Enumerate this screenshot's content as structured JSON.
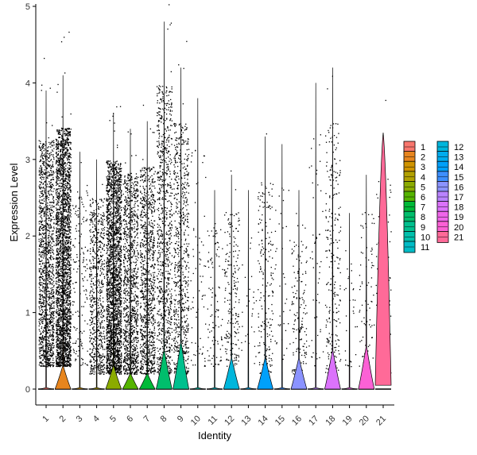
{
  "chart_data": {
    "type": "violin",
    "title": "",
    "xlabel": "Identity",
    "ylabel": "Expression Level",
    "ylim": [
      0,
      5
    ],
    "yticks": [
      "0",
      "1",
      "2",
      "3",
      "4",
      "5"
    ],
    "categories": [
      "1",
      "2",
      "3",
      "4",
      "5",
      "6",
      "7",
      "8",
      "9",
      "10",
      "11",
      "12",
      "13",
      "14",
      "15",
      "16",
      "17",
      "18",
      "19",
      "20",
      "21"
    ],
    "legend_position": "right",
    "grid": false,
    "series": [
      {
        "name": "1",
        "color": "#F8766D",
        "max": 3.9,
        "fraction_nonzero": 0.02,
        "violin_top": 0.0,
        "point_count": 1400,
        "point_range": [
          0.3,
          3.9
        ]
      },
      {
        "name": "2",
        "color": "#E7851E",
        "max": 4.1,
        "fraction_nonzero": 0.45,
        "violin_top": 0.3,
        "point_count": 2600,
        "point_range": [
          0.3,
          4.1
        ]
      },
      {
        "name": "3",
        "color": "#D09400",
        "max": 3.1,
        "fraction_nonzero": 0.02,
        "violin_top": 0.0,
        "point_count": 150,
        "point_range": [
          0.3,
          3.1
        ]
      },
      {
        "name": "4",
        "color": "#B2A100",
        "max": 3.0,
        "fraction_nonzero": 0.02,
        "violin_top": 0.0,
        "point_count": 700,
        "point_range": [
          0.2,
          3.0
        ]
      },
      {
        "name": "5",
        "color": "#8BAB00",
        "max": 3.6,
        "fraction_nonzero": 0.1,
        "violin_top": 0.3,
        "point_count": 2400,
        "point_range": [
          0.2,
          3.6
        ]
      },
      {
        "name": "6",
        "color": "#55B400",
        "max": 3.4,
        "fraction_nonzero": 0.05,
        "violin_top": 0.2,
        "point_count": 1100,
        "point_range": [
          0.2,
          3.4
        ]
      },
      {
        "name": "7",
        "color": "#00BA38",
        "max": 3.5,
        "fraction_nonzero": 0.05,
        "violin_top": 0.2,
        "point_count": 1000,
        "point_range": [
          0.2,
          3.5
        ]
      },
      {
        "name": "8",
        "color": "#00BE6C",
        "max": 4.8,
        "fraction_nonzero": 0.12,
        "violin_top": 0.5,
        "point_count": 900,
        "point_range": [
          0.2,
          4.8
        ]
      },
      {
        "name": "9",
        "color": "#00C08E",
        "max": 4.2,
        "fraction_nonzero": 0.12,
        "violin_top": 0.6,
        "point_count": 700,
        "point_range": [
          0.2,
          4.2
        ]
      },
      {
        "name": "10",
        "color": "#00C0AC",
        "max": 3.8,
        "fraction_nonzero": 0.01,
        "violin_top": 0.0,
        "point_count": 70,
        "point_range": [
          0.3,
          3.8
        ]
      },
      {
        "name": "11",
        "color": "#00BCC6",
        "max": 2.6,
        "fraction_nonzero": 0.01,
        "violin_top": 0.0,
        "point_count": 100,
        "point_range": [
          0.3,
          2.6
        ]
      },
      {
        "name": "12",
        "color": "#00B6DC",
        "max": 2.8,
        "fraction_nonzero": 0.08,
        "violin_top": 0.4,
        "point_count": 200,
        "point_range": [
          0.3,
          2.8
        ]
      },
      {
        "name": "13",
        "color": "#00ACEE",
        "max": 2.6,
        "fraction_nonzero": 0.01,
        "violin_top": 0.0,
        "point_count": 30,
        "point_range": [
          0.3,
          2.6
        ]
      },
      {
        "name": "14",
        "color": "#00A0FA",
        "max": 3.3,
        "fraction_nonzero": 0.08,
        "violin_top": 0.4,
        "point_count": 200,
        "point_range": [
          0.2,
          3.3
        ]
      },
      {
        "name": "15",
        "color": "#3D8FFF",
        "max": 3.2,
        "fraction_nonzero": 0.01,
        "violin_top": 0.0,
        "point_count": 40,
        "point_range": [
          0.3,
          3.2
        ]
      },
      {
        "name": "16",
        "color": "#8B93FF",
        "max": 2.6,
        "fraction_nonzero": 0.08,
        "violin_top": 0.4,
        "point_count": 150,
        "point_range": [
          0.2,
          2.6
        ]
      },
      {
        "name": "17",
        "color": "#B983FF",
        "max": 4.0,
        "fraction_nonzero": 0.01,
        "violin_top": 0.0,
        "point_count": 50,
        "point_range": [
          0.3,
          4.0
        ]
      },
      {
        "name": "18",
        "color": "#DB72FB",
        "max": 4.2,
        "fraction_nonzero": 0.15,
        "violin_top": 0.5,
        "point_count": 250,
        "point_range": [
          0.2,
          4.2
        ]
      },
      {
        "name": "19",
        "color": "#F066EA",
        "max": 2.3,
        "fraction_nonzero": 0.01,
        "violin_top": 0.0,
        "point_count": 30,
        "point_range": [
          0.3,
          2.3
        ]
      },
      {
        "name": "20",
        "color": "#FC61D5",
        "max": 2.8,
        "fraction_nonzero": 0.1,
        "violin_top": 0.55,
        "point_count": 80,
        "point_range": [
          0.3,
          2.8
        ]
      },
      {
        "name": "21",
        "color": "#FF6A98",
        "max": 3.35,
        "fraction_nonzero": 0.6,
        "violin_top": 3.35,
        "point_count": 110,
        "point_range": [
          0.1,
          3.35
        ]
      }
    ]
  }
}
